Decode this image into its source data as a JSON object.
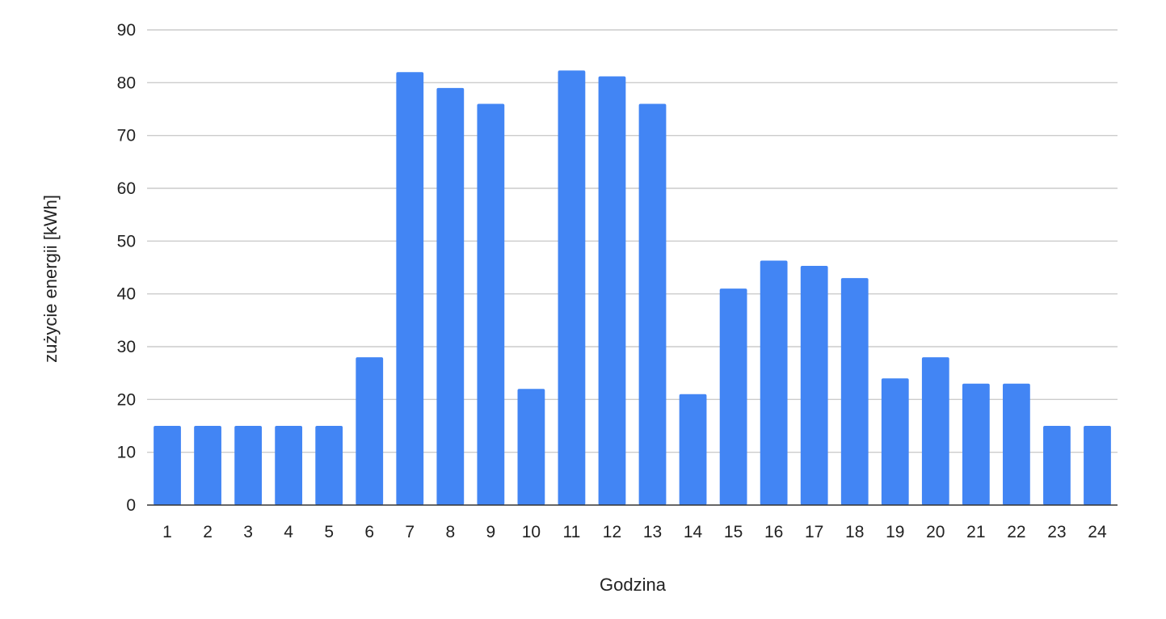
{
  "chart_data": {
    "type": "bar",
    "title": "",
    "xlabel": "Godzina",
    "ylabel": "zużycie energii [kWh]",
    "ylim": [
      0,
      90
    ],
    "yticks": [
      0,
      10,
      20,
      30,
      40,
      50,
      60,
      70,
      80,
      90
    ],
    "grid": true,
    "legend": "none",
    "categories": [
      "1",
      "2",
      "3",
      "4",
      "5",
      "6",
      "7",
      "8",
      "9",
      "10",
      "11",
      "12",
      "13",
      "14",
      "15",
      "16",
      "17",
      "18",
      "19",
      "20",
      "21",
      "22",
      "23",
      "24"
    ],
    "series": [
      {
        "values": [
          15,
          15,
          15,
          15,
          15,
          28,
          82,
          79,
          76,
          22,
          82.3,
          81.2,
          76,
          21,
          41,
          46.3,
          45.3,
          43,
          24,
          28,
          23,
          23,
          15,
          15
        ],
        "color": "#4285f4"
      }
    ],
    "colors": {
      "bar": "#4285f4",
      "grid": "#cccccc",
      "axis": "#333333",
      "text": "#222222"
    }
  }
}
